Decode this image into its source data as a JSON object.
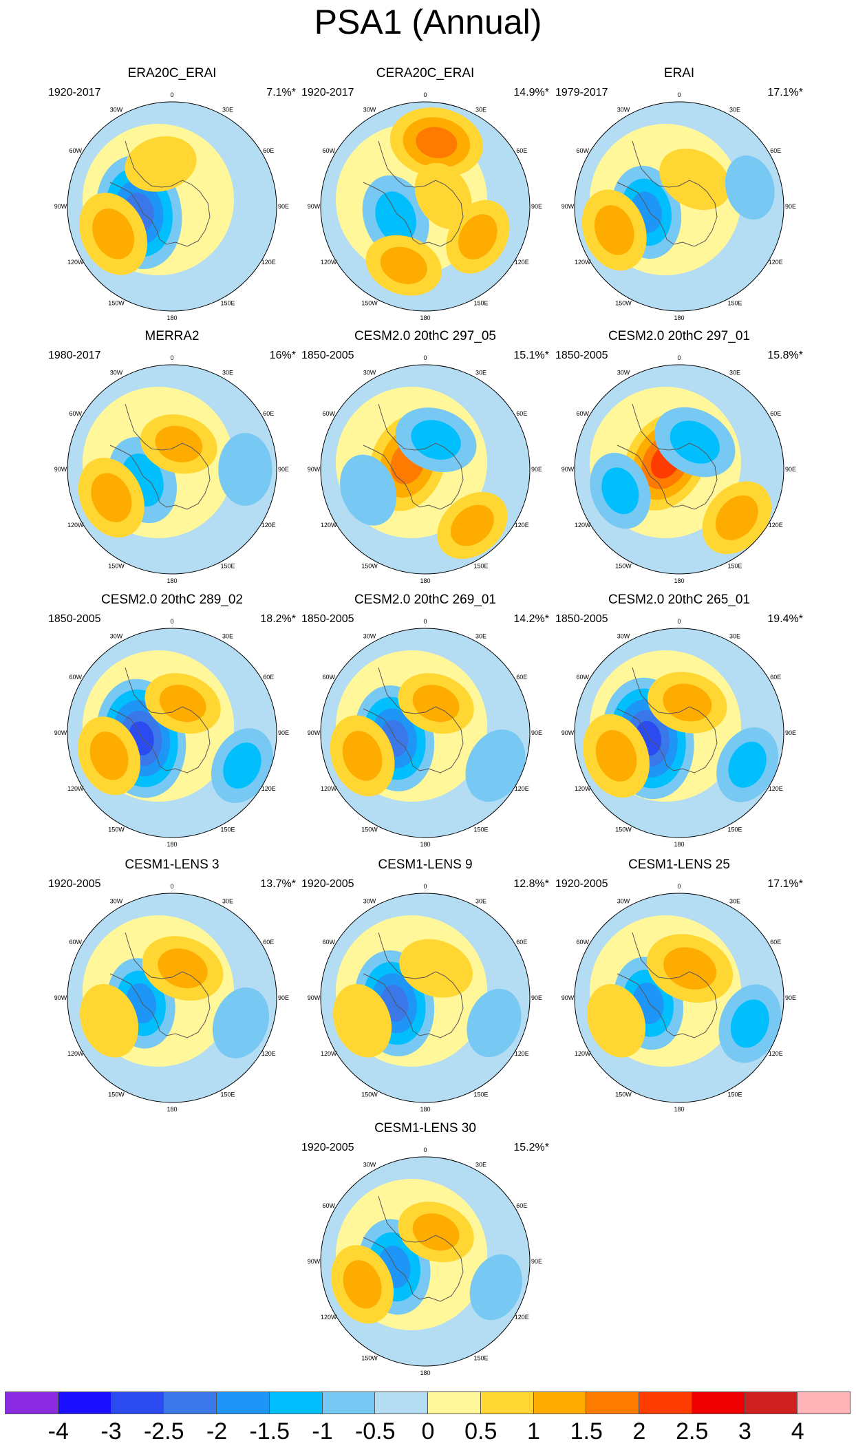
{
  "title": "PSA1 (Annual)",
  "longitude_labels": [
    "0",
    "30E",
    "60E",
    "90E",
    "120E",
    "150E",
    "180",
    "150W",
    "120W",
    "90W",
    "60W",
    "30W"
  ],
  "panels": [
    {
      "title": "ERA20C_ERAI",
      "period": "1920-2017",
      "variance": "7.1%*",
      "centers": [
        {
          "lon": -100,
          "r": 0.32,
          "value": -2.4
        },
        {
          "lon": -115,
          "r": 0.62,
          "value": 1.3
        },
        {
          "lon": -15,
          "r": 0.42,
          "value": 0.8
        }
      ]
    },
    {
      "title": "CERA20C_ERAI",
      "period": "1920-2017",
      "variance": "14.9%*",
      "centers": [
        {
          "lon": 10,
          "r": 0.62,
          "value": 1.6
        },
        {
          "lon": -110,
          "r": 0.3,
          "value": -1.3
        },
        {
          "lon": 120,
          "r": 0.58,
          "value": 1.0
        },
        {
          "lon": -160,
          "r": 0.6,
          "value": 1.0
        },
        {
          "lon": 60,
          "r": 0.2,
          "value": 0.7
        }
      ]
    },
    {
      "title": "ERAI",
      "period": "1979-2017",
      "variance": "17.1%*",
      "centers": [
        {
          "lon": -100,
          "r": 0.32,
          "value": -1.6
        },
        {
          "lon": -110,
          "r": 0.66,
          "value": 1.2
        },
        {
          "lon": 30,
          "r": 0.3,
          "value": 0.9
        },
        {
          "lon": 75,
          "r": 0.7,
          "value": -0.5
        }
      ]
    },
    {
      "title": "MERRA2",
      "period": "1980-2017",
      "variance": "16%*",
      "centers": [
        {
          "lon": -110,
          "r": 0.3,
          "value": -1.4
        },
        {
          "lon": -115,
          "r": 0.64,
          "value": 1.2
        },
        {
          "lon": 15,
          "r": 0.25,
          "value": 1.0
        },
        {
          "lon": 90,
          "r": 0.7,
          "value": -0.8
        }
      ]
    },
    {
      "title": "CESM2.0 20thC 297_05",
      "period": "1850-2005",
      "variance": "15.1%*",
      "centers": [
        {
          "lon": -70,
          "r": 0.18,
          "value": 1.8
        },
        {
          "lon": 20,
          "r": 0.3,
          "value": -1.2
        },
        {
          "lon": -110,
          "r": 0.58,
          "value": -0.8
        },
        {
          "lon": 140,
          "r": 0.7,
          "value": 1.0
        }
      ]
    },
    {
      "title": "CESM2.0 20thC 297_01",
      "period": "1850-2005",
      "variance": "15.8%*",
      "centers": [
        {
          "lon": -60,
          "r": 0.15,
          "value": 2.0
        },
        {
          "lon": 30,
          "r": 0.3,
          "value": -1.3
        },
        {
          "lon": -110,
          "r": 0.6,
          "value": -1.0
        },
        {
          "lon": 130,
          "r": 0.72,
          "value": 1.1
        }
      ]
    },
    {
      "title": "CESM2.0 20thC 289_02",
      "period": "1850-2005",
      "variance": "18.2%*",
      "centers": [
        {
          "lon": -100,
          "r": 0.3,
          "value": -2.6
        },
        {
          "lon": -110,
          "r": 0.64,
          "value": 1.1
        },
        {
          "lon": 20,
          "r": 0.3,
          "value": 1.0
        },
        {
          "lon": 115,
          "r": 0.74,
          "value": -1.0
        }
      ]
    },
    {
      "title": "CESM2.0 20thC 269_01",
      "period": "1850-2005",
      "variance": "14.2%*",
      "centers": [
        {
          "lon": -100,
          "r": 0.3,
          "value": -2.1
        },
        {
          "lon": -110,
          "r": 0.64,
          "value": 1.2
        },
        {
          "lon": 20,
          "r": 0.3,
          "value": 1.0
        },
        {
          "lon": 115,
          "r": 0.74,
          "value": -0.9
        }
      ]
    },
    {
      "title": "CESM2.0 20thC 265_01",
      "period": "1850-2005",
      "variance": "19.4%*",
      "centers": [
        {
          "lon": -100,
          "r": 0.3,
          "value": -2.7
        },
        {
          "lon": -110,
          "r": 0.64,
          "value": 1.3
        },
        {
          "lon": 15,
          "r": 0.3,
          "value": 1.1
        },
        {
          "lon": 115,
          "r": 0.72,
          "value": -1.0
        }
      ]
    },
    {
      "title": "CESM1-LENS 3",
      "period": "1920-2005",
      "variance": "13.7%*",
      "centers": [
        {
          "lon": -100,
          "r": 0.3,
          "value": -1.5
        },
        {
          "lon": -110,
          "r": 0.64,
          "value": 0.9
        },
        {
          "lon": 20,
          "r": 0.3,
          "value": 1.2
        },
        {
          "lon": 110,
          "r": 0.7,
          "value": -0.8
        }
      ]
    },
    {
      "title": "CESM1-LENS 9",
      "period": "1920-2005",
      "variance": "12.8%*",
      "centers": [
        {
          "lon": -100,
          "r": 0.3,
          "value": -2.1
        },
        {
          "lon": -110,
          "r": 0.64,
          "value": 0.9
        },
        {
          "lon": 20,
          "r": 0.3,
          "value": 0.9
        },
        {
          "lon": 110,
          "r": 0.7,
          "value": -0.7
        }
      ]
    },
    {
      "title": "CESM1-LENS 25",
      "period": "1920-2005",
      "variance": "17.1%*",
      "centers": [
        {
          "lon": -100,
          "r": 0.3,
          "value": -1.6
        },
        {
          "lon": -110,
          "r": 0.64,
          "value": 0.9
        },
        {
          "lon": 20,
          "r": 0.3,
          "value": 1.4
        },
        {
          "lon": 110,
          "r": 0.72,
          "value": -1.1
        }
      ]
    },
    {
      "title": "CESM1-LENS 30",
      "period": "1920-2005",
      "variance": "15.2%*",
      "centers": [
        {
          "lon": -100,
          "r": 0.3,
          "value": -1.7
        },
        {
          "lon": -110,
          "r": 0.64,
          "value": 1.1
        },
        {
          "lon": 20,
          "r": 0.3,
          "value": 1.0
        },
        {
          "lon": 110,
          "r": 0.72,
          "value": -0.6
        }
      ]
    }
  ],
  "colorbar": {
    "colors": [
      "#8a2be2",
      "#1a0fff",
      "#2b4bf0",
      "#3a78ea",
      "#1e96f8",
      "#00bffc",
      "#78c8f4",
      "#b4ddf4",
      "#fff799",
      "#ffd632",
      "#ffac00",
      "#ff7a00",
      "#ff3c00",
      "#ee0000",
      "#d02020",
      "#ffb4b8"
    ],
    "labels": [
      "-4",
      "-3",
      "-2.5",
      "-2",
      "-1.5",
      "-1",
      "-0.5",
      "0",
      "0.5",
      "1",
      "1.5",
      "2",
      "2.5",
      "3",
      "4"
    ],
    "levels": [
      -4,
      -3,
      -2.5,
      -2,
      -1.5,
      -1,
      -0.5,
      0,
      0.5,
      1,
      1.5,
      2,
      2.5,
      3,
      4
    ]
  }
}
